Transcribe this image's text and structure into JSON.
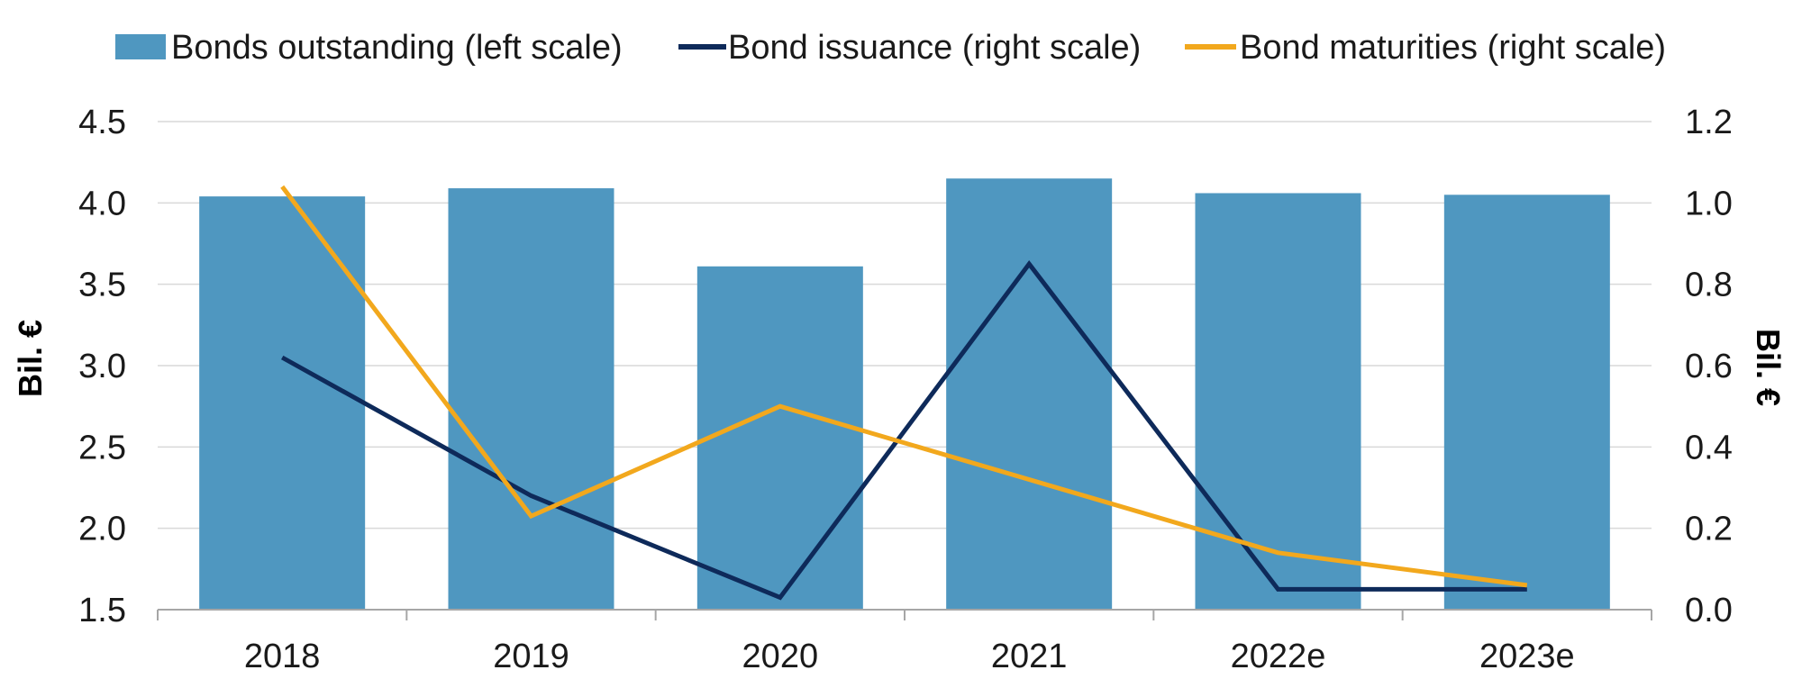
{
  "chart_data": {
    "type": "bar",
    "title": "",
    "categories": [
      "2018",
      "2019",
      "2020",
      "2021",
      "2022e",
      "2023e"
    ],
    "series": [
      {
        "name": "Bonds outstanding (left scale)",
        "type": "bar",
        "axis": "left",
        "color": "#4f97c0",
        "values": [
          4.04,
          4.09,
          3.61,
          4.15,
          4.06,
          4.05
        ]
      },
      {
        "name": "Bond issuance (right scale)",
        "type": "line",
        "axis": "right",
        "color": "#0e2a5a",
        "values": [
          0.62,
          0.28,
          0.03,
          0.85,
          0.05,
          0.05
        ]
      },
      {
        "name": "Bond maturities (right scale)",
        "type": "line",
        "axis": "right",
        "color": "#f2a81d",
        "values": [
          1.04,
          0.23,
          0.5,
          0.32,
          0.14,
          0.06
        ]
      }
    ],
    "y_left": {
      "label": "Bil. €",
      "min": 1.5,
      "max": 4.5,
      "ticks": [
        "1.5",
        "2.0",
        "2.5",
        "3.0",
        "3.5",
        "4.0",
        "4.5"
      ]
    },
    "y_right": {
      "label": "Bil. €",
      "min": 0.0,
      "max": 1.2,
      "ticks": [
        "0.0",
        "0.2",
        "0.4",
        "0.6",
        "0.8",
        "1.0",
        "1.2"
      ]
    },
    "grid": true,
    "legend_position": "top"
  }
}
